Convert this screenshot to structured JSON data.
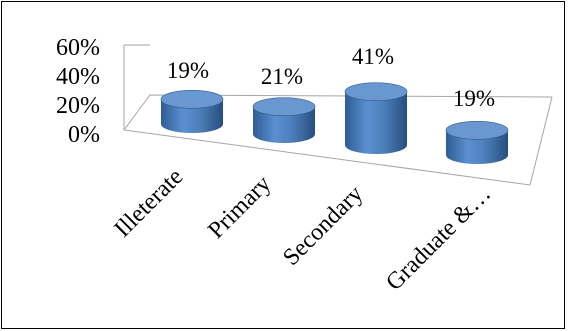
{
  "chart_data": {
    "type": "bar",
    "style": "3d-cylinder",
    "title": "",
    "xlabel": "",
    "ylabel": "",
    "categories": [
      "Illeterate",
      "Primary",
      "Secondary",
      "Graduate &…"
    ],
    "values": [
      19,
      21,
      41,
      19
    ],
    "data_labels": [
      "19%",
      "21%",
      "41%",
      "19%"
    ],
    "yticks": [
      "0%",
      "20%",
      "40%",
      "60%"
    ],
    "ylim": [
      0,
      60
    ],
    "grid": false,
    "legend": "none",
    "bar_color": "#4F81BD",
    "bar_dark": "#2F5C94",
    "bar_top": "#6A97CF"
  }
}
